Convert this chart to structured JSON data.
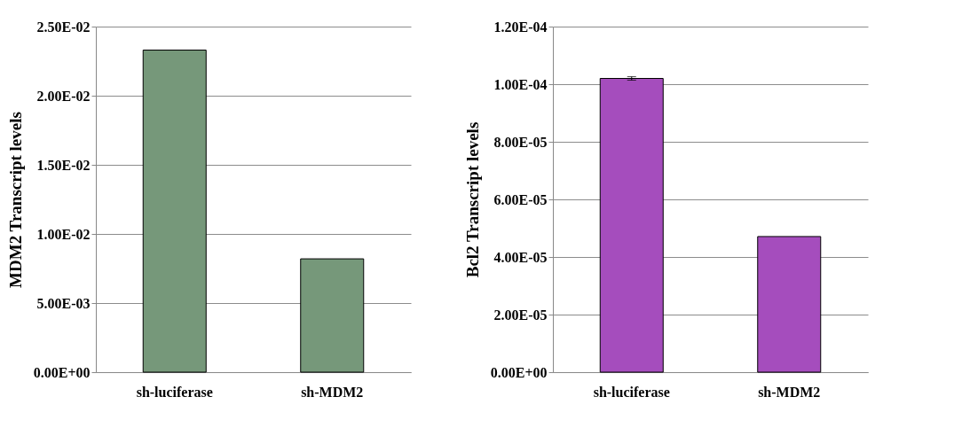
{
  "chart_data": [
    {
      "type": "bar",
      "ylabel": "MDM2 Transcript levels",
      "categories": [
        "sh-luciferase",
        "sh-MDM2"
      ],
      "values": [
        0.0233,
        0.0082
      ],
      "color": "#76987a",
      "ylim": [
        0,
        0.025
      ],
      "yticks": [
        {
          "value": 0,
          "label": "0.00E+00"
        },
        {
          "value": 0.005,
          "label": "5.00E-03"
        },
        {
          "value": 0.01,
          "label": "1.00E-02"
        },
        {
          "value": 0.015,
          "label": "1.50E-02"
        },
        {
          "value": 0.02,
          "label": "2.00E-02"
        },
        {
          "value": 0.025,
          "label": "2.50E-02"
        }
      ],
      "grid": "y"
    },
    {
      "type": "bar",
      "ylabel": "Bcl2 Transcript levels",
      "categories": [
        "sh-luciferase",
        "sh-MDM2"
      ],
      "values": [
        0.000102,
        4.71e-05
      ],
      "errors": [
        6e-07,
        null
      ],
      "color": "#a54dbd",
      "ylim": [
        0,
        0.00012
      ],
      "yticks": [
        {
          "value": 0,
          "label": "0.00E+00"
        },
        {
          "value": 2e-05,
          "label": "2.00E-05"
        },
        {
          "value": 4e-05,
          "label": "4.00E-05"
        },
        {
          "value": 6e-05,
          "label": "6.00E-05"
        },
        {
          "value": 8e-05,
          "label": "8.00E-05"
        },
        {
          "value": 0.0001,
          "label": "1.00E-04"
        },
        {
          "value": 0.00012,
          "label": "1.20E-04"
        }
      ],
      "grid": "y"
    }
  ]
}
